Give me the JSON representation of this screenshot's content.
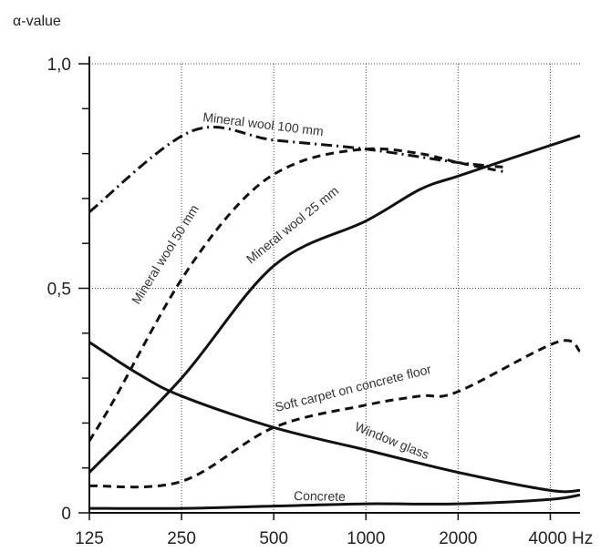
{
  "chart_data": {
    "type": "line",
    "ylabel": "α-value",
    "x_ticks": [
      "125",
      "250",
      "500",
      "1000",
      "2000",
      "4000 Hz"
    ],
    "x_tick_values": [
      125,
      250,
      500,
      1000,
      2000,
      4000
    ],
    "y_ticks": [
      "0",
      "0,5",
      "1,0"
    ],
    "y_tick_values": [
      0,
      0.5,
      1.0
    ],
    "ylim": [
      0,
      1.0
    ],
    "xlim": [
      125,
      5000
    ],
    "xscale": "log2",
    "grid": true,
    "series": [
      {
        "name": "Mineral wool 100 mm",
        "style": "dashdot",
        "x": [
          125,
          270,
          500,
          1000,
          2000,
          2800
        ],
        "y": [
          0.67,
          0.85,
          0.83,
          0.81,
          0.78,
          0.77
        ]
      },
      {
        "name": "Mineral wool 50 mm",
        "style": "dashed",
        "x": [
          125,
          150,
          250,
          400,
          600,
          1000,
          1500,
          2000,
          2800
        ],
        "y": [
          0.16,
          0.25,
          0.52,
          0.7,
          0.78,
          0.81,
          0.8,
          0.78,
          0.76
        ]
      },
      {
        "name": "Mineral wool 25 mm",
        "style": "solid",
        "x": [
          125,
          250,
          500,
          1000,
          1500,
          2000,
          3000,
          5000
        ],
        "y": [
          0.09,
          0.3,
          0.55,
          0.65,
          0.72,
          0.75,
          0.79,
          0.84
        ]
      },
      {
        "name": "Soft carpet on concrete floor",
        "style": "dashed",
        "x": [
          125,
          250,
          500,
          1000,
          1500,
          2000,
          4200,
          5000
        ],
        "y": [
          0.06,
          0.07,
          0.19,
          0.24,
          0.26,
          0.27,
          0.38,
          0.36
        ]
      },
      {
        "name": "Window glass",
        "style": "solid",
        "x": [
          125,
          180,
          250,
          500,
          1000,
          2000,
          4000,
          5000
        ],
        "y": [
          0.38,
          0.31,
          0.26,
          0.19,
          0.14,
          0.09,
          0.05,
          0.05
        ]
      },
      {
        "name": "Concrete",
        "style": "solid",
        "x": [
          125,
          250,
          500,
          1000,
          2000,
          4000,
          5000
        ],
        "y": [
          0.01,
          0.01,
          0.015,
          0.02,
          0.02,
          0.03,
          0.04
        ]
      }
    ],
    "labels": {
      "mw100": "Mineral wool 100 mm",
      "mw50": "Mineral wool 50 mm",
      "mw25": "Mineral wool 25 mm",
      "carpet": "Soft carpet on concrete floor",
      "glass": "Window glass",
      "concrete": "Concrete"
    }
  }
}
